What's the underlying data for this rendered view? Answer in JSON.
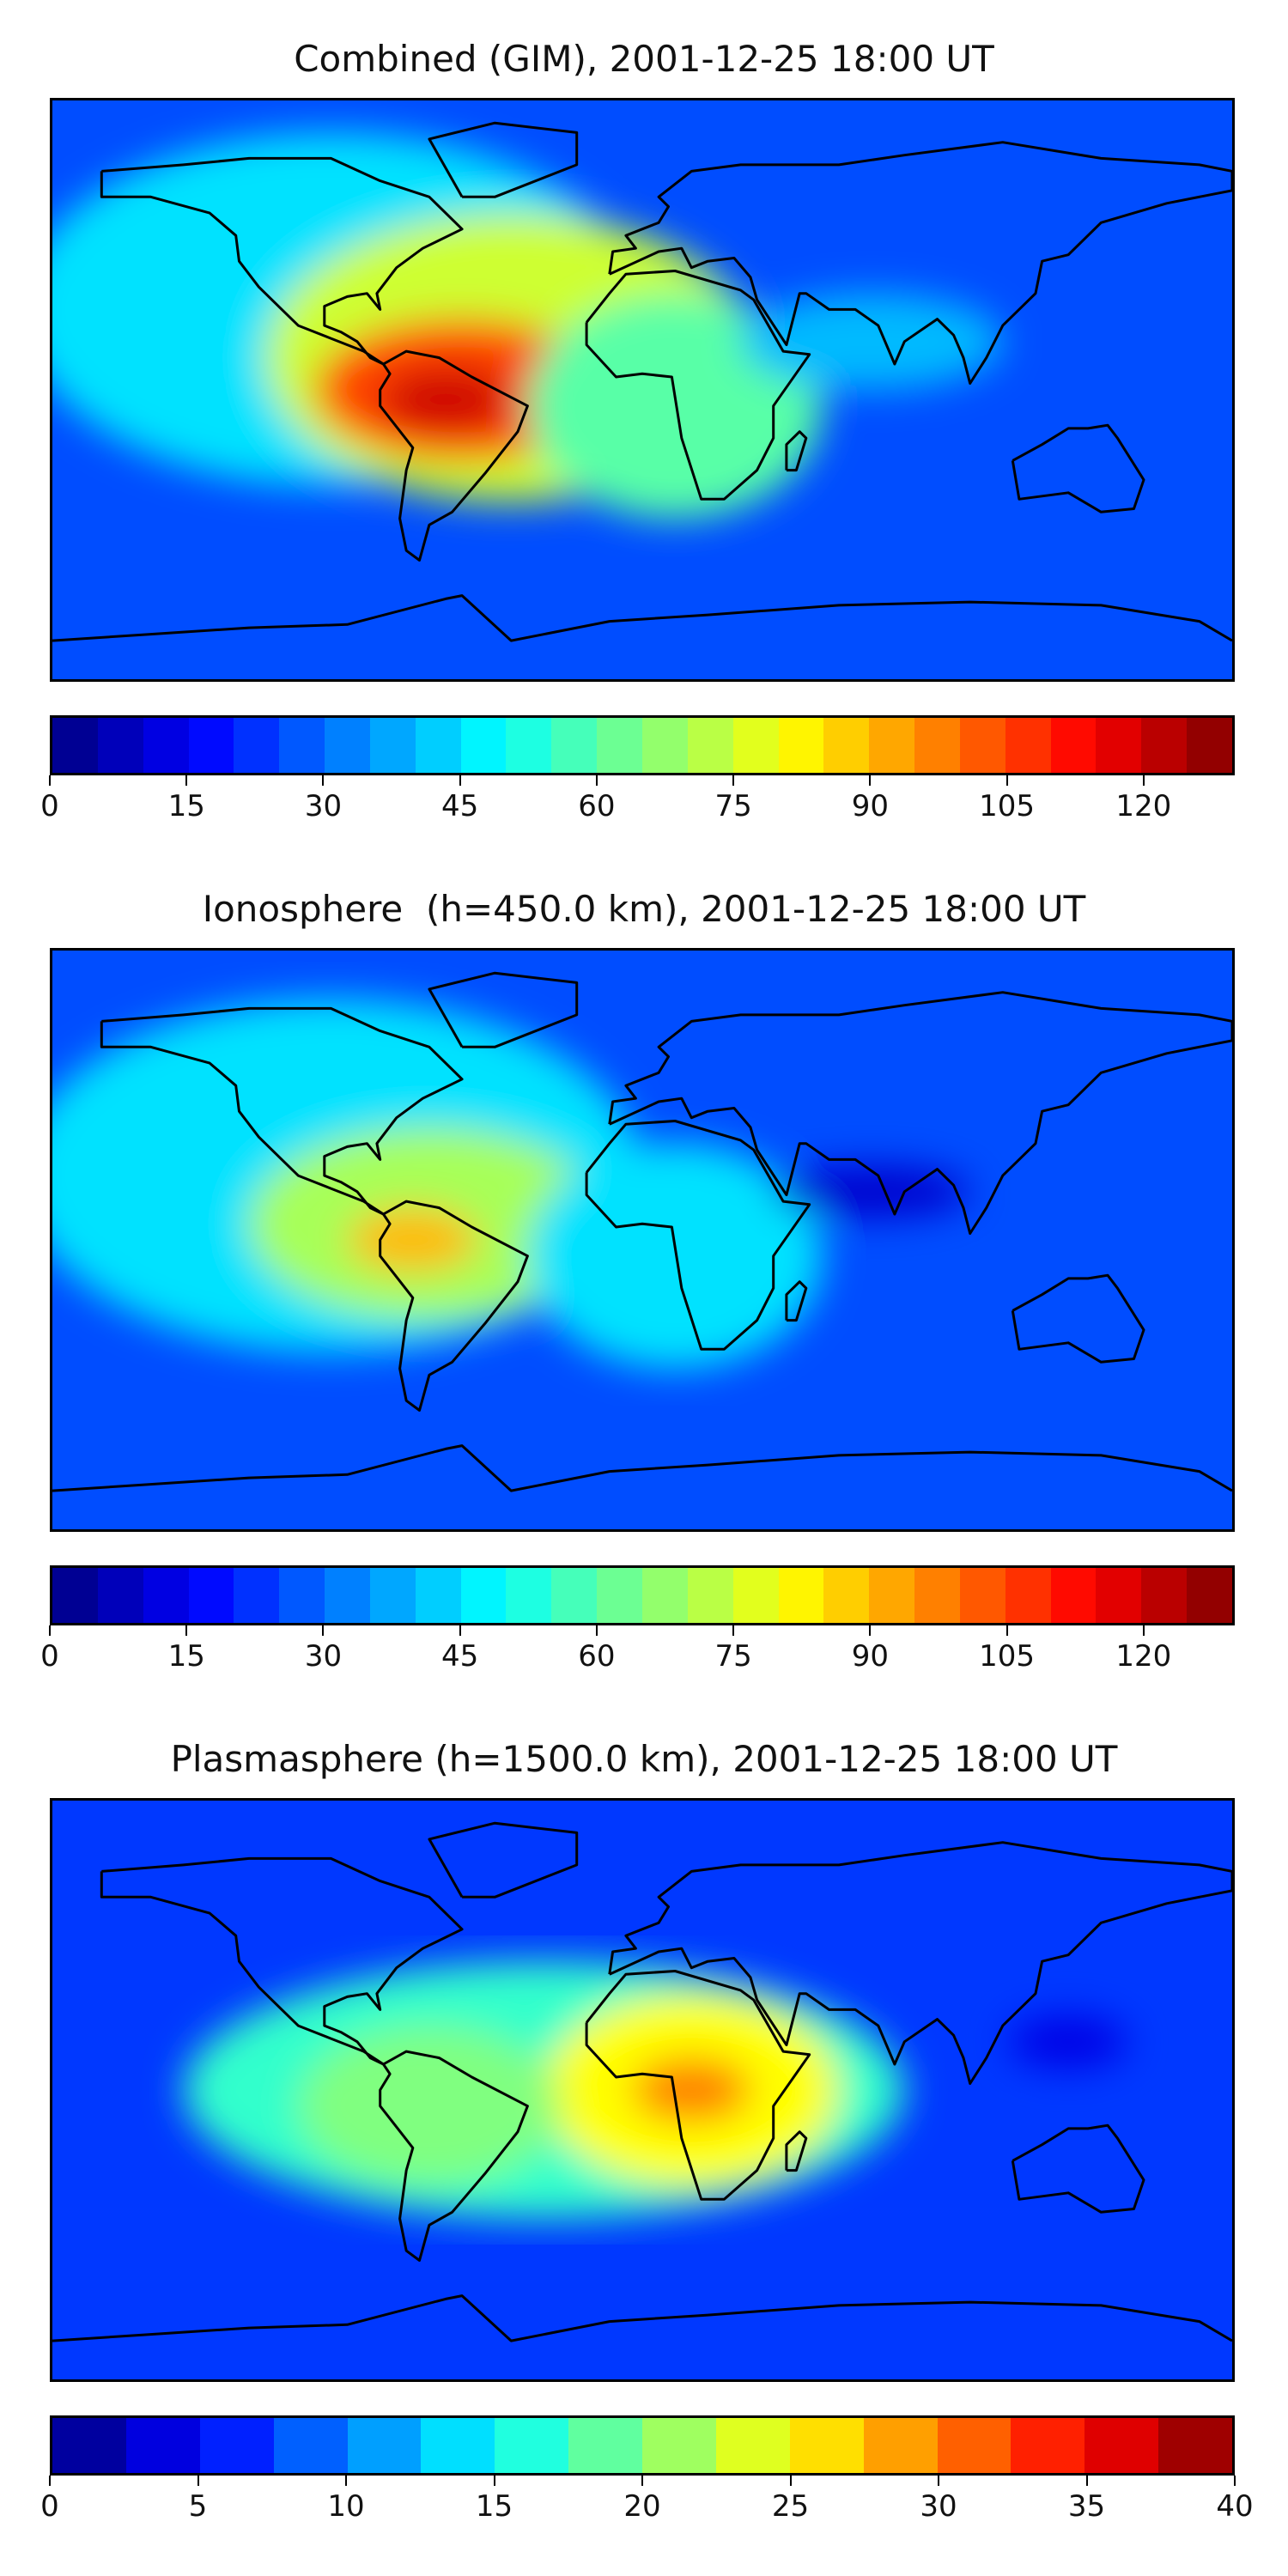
{
  "panels": [
    {
      "title": "Combined (GIM), 2001-12-25 18:00 UT",
      "colorbar": {
        "min": 0,
        "max": 130,
        "levels": 26,
        "tick_labels": [
          "0",
          "15",
          "30",
          "45",
          "60",
          "75",
          "90",
          "105",
          "120"
        ],
        "tick_values": [
          0,
          15,
          30,
          45,
          60,
          75,
          90,
          105,
          120
        ]
      },
      "blobs": [
        {
          "lon": -95,
          "lat": 25,
          "rx": 95,
          "ry": 55,
          "value": 45
        },
        {
          "lon": -40,
          "lat": 10,
          "rx": 75,
          "ry": 45,
          "value": 75
        },
        {
          "lon": -55,
          "lat": 0,
          "rx": 45,
          "ry": 22,
          "value": 105
        },
        {
          "lon": -60,
          "lat": -3,
          "rx": 20,
          "ry": 10,
          "value": 120
        },
        {
          "lon": 10,
          "lat": -5,
          "rx": 45,
          "ry": 35,
          "value": 60
        },
        {
          "lon": 70,
          "lat": 15,
          "rx": 40,
          "ry": 15,
          "value": 40
        }
      ]
    },
    {
      "title": "Ionosphere  (h=450.0 km), 2001-12-25 18:00 UT",
      "colorbar": {
        "min": 0,
        "max": 130,
        "levels": 26,
        "tick_labels": [
          "0",
          "15",
          "30",
          "45",
          "60",
          "75",
          "90",
          "105",
          "120"
        ],
        "tick_values": [
          0,
          15,
          30,
          45,
          60,
          75,
          90,
          105,
          120
        ]
      },
      "blobs": [
        {
          "lon": -95,
          "lat": 20,
          "rx": 95,
          "ry": 55,
          "value": 45
        },
        {
          "lon": -65,
          "lat": 5,
          "rx": 55,
          "ry": 30,
          "value": 70
        },
        {
          "lon": -70,
          "lat": 0,
          "rx": 20,
          "ry": 10,
          "value": 90
        },
        {
          "lon": 10,
          "lat": -5,
          "rx": 45,
          "ry": 35,
          "value": 45
        },
        {
          "lon": 70,
          "lat": 15,
          "rx": 30,
          "ry": 8,
          "value": 10
        }
      ]
    },
    {
      "title": "Plasmasphere (h=1500.0 km), 2001-12-25 18:00 UT",
      "colorbar": {
        "min": 0,
        "max": 40,
        "levels": 16,
        "tick_labels": [
          "0",
          "5",
          "10",
          "15",
          "20",
          "25",
          "30",
          "35",
          "40"
        ],
        "tick_values": [
          0,
          5,
          10,
          15,
          20,
          25,
          30,
          35,
          40
        ]
      },
      "blobs": [
        {
          "lon": -30,
          "lat": 0,
          "rx": 110,
          "ry": 40,
          "value": 17
        },
        {
          "lon": 15,
          "lat": 0,
          "rx": 45,
          "ry": 30,
          "value": 25
        },
        {
          "lon": 15,
          "lat": 0,
          "rx": 18,
          "ry": 10,
          "value": 30
        },
        {
          "lon": -65,
          "lat": -5,
          "rx": 40,
          "ry": 25,
          "value": 20
        },
        {
          "lon": 130,
          "lat": 15,
          "rx": 18,
          "ry": 8,
          "value": 4
        }
      ]
    }
  ]
}
